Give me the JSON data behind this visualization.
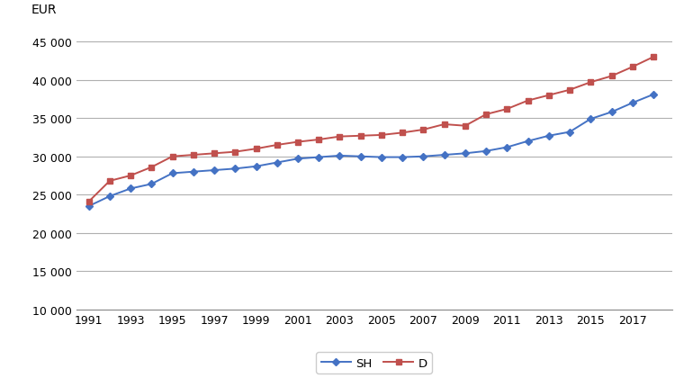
{
  "years": [
    1991,
    1992,
    1993,
    1994,
    1995,
    1996,
    1997,
    1998,
    1999,
    2000,
    2001,
    2002,
    2003,
    2004,
    2005,
    2006,
    2007,
    2008,
    2009,
    2010,
    2011,
    2012,
    2013,
    2014,
    2015,
    2016,
    2017,
    2018
  ],
  "SH": [
    23500,
    24800,
    25800,
    26400,
    27800,
    28000,
    28200,
    28400,
    28700,
    29200,
    29700,
    29900,
    30100,
    30000,
    29900,
    29900,
    30000,
    30200,
    30400,
    30700,
    31200,
    32000,
    32700,
    33200,
    34900,
    35800,
    37000,
    38100
  ],
  "D": [
    24100,
    26800,
    27500,
    28600,
    30000,
    30200,
    30400,
    30600,
    31000,
    31500,
    31900,
    32200,
    32600,
    32700,
    32800,
    33100,
    33500,
    34200,
    34000,
    35500,
    36200,
    37300,
    38000,
    38700,
    39700,
    40500,
    41700,
    43000
  ],
  "SH_color": "#4472c4",
  "D_color": "#c0504d",
  "SH_marker": "D",
  "D_marker": "s",
  "SH_label": "SH",
  "D_label": "D",
  "ylabel": "EUR",
  "ylim": [
    10000,
    47000
  ],
  "yticks": [
    10000,
    15000,
    20000,
    25000,
    30000,
    35000,
    40000,
    45000
  ],
  "xtick_years": [
    1991,
    1993,
    1995,
    1997,
    1999,
    2001,
    2003,
    2005,
    2007,
    2009,
    2011,
    2013,
    2015,
    2017
  ],
  "background_color": "#ffffff",
  "grid_color": "#b0b0b0",
  "markersize": 4.5,
  "linewidth": 1.4
}
